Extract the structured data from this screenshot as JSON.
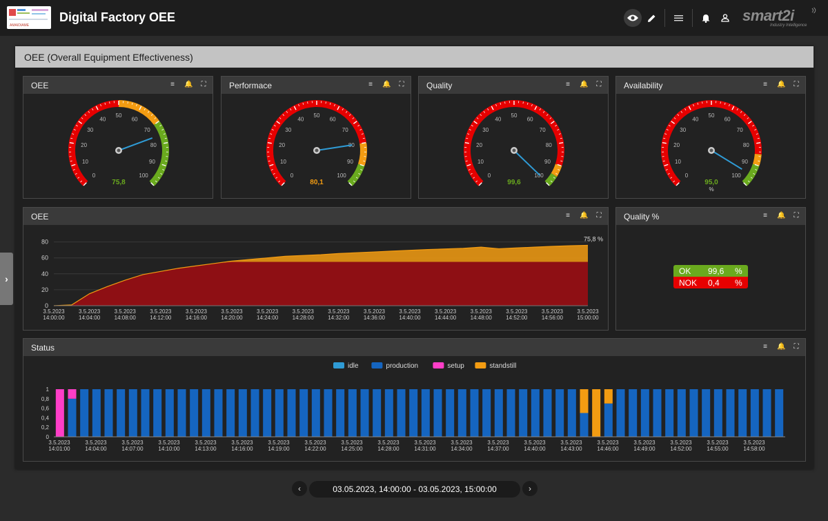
{
  "header": {
    "app_title": "Digital Factory OEE",
    "logo_text": "AMAIDIAME",
    "brand": "smart2i",
    "brand_tagline": "Industry Intelligence",
    "icons": [
      "eye-icon",
      "edit-icon",
      "menu-icon",
      "bell-icon",
      "user-icon"
    ]
  },
  "section": {
    "title": "OEE (Overall Equipment Effectiveness)"
  },
  "colors": {
    "red": "#e60000",
    "orange": "#f39c12",
    "green": "#6aaa1e",
    "blue_line": "#2f9bd5",
    "production": "#1565c0",
    "idle": "#2f9bd5",
    "setup": "#ff3ec8",
    "standstill": "#f39c12"
  },
  "gauges": [
    {
      "title": "OEE",
      "value": 75.8,
      "display": "75,8",
      "unit": "",
      "value_color": "#6aaa1e",
      "bands": [
        [
          0,
          50,
          "red"
        ],
        [
          50,
          70,
          "orange"
        ],
        [
          70,
          100,
          "green"
        ]
      ]
    },
    {
      "title": "Performace",
      "value": 80.1,
      "display": "80,1",
      "unit": "",
      "value_color": "#f39c12",
      "bands": [
        [
          0,
          80,
          "red"
        ],
        [
          80,
          90,
          "orange"
        ],
        [
          90,
          100,
          "green"
        ]
      ]
    },
    {
      "title": "Quality",
      "value": 99.6,
      "display": "99,6",
      "unit": "",
      "value_color": "#6aaa1e",
      "bands": [
        [
          0,
          90,
          "red"
        ],
        [
          90,
          95,
          "orange"
        ],
        [
          95,
          100,
          "green"
        ]
      ]
    },
    {
      "title": "Availability",
      "value": 95.0,
      "display": "95,0",
      "unit": "%",
      "value_color": "#6aaa1e",
      "bands": [
        [
          0,
          85,
          "red"
        ],
        [
          85,
          90,
          "orange"
        ],
        [
          90,
          100,
          "green"
        ]
      ]
    }
  ],
  "gauge_ticks": [
    "0",
    "10",
    "20",
    "30",
    "40",
    "50",
    "60",
    "70",
    "80",
    "90",
    "100"
  ],
  "oee_chart": {
    "title": "OEE",
    "end_label": "75,8 %",
    "chart_data": {
      "type": "area",
      "y_ticks": [
        0,
        20,
        40,
        60,
        80
      ],
      "ylim": [
        0,
        84
      ],
      "x_labels": [
        [
          "3.5.2023",
          "14:00:00"
        ],
        [
          "3.5.2023",
          "14:04:00"
        ],
        [
          "3.5.2023",
          "14:08:00"
        ],
        [
          "3.5.2023",
          "14:12:00"
        ],
        [
          "3.5.2023",
          "14:16:00"
        ],
        [
          "3.5.2023",
          "14:20:00"
        ],
        [
          "3.5.2023",
          "14:24:00"
        ],
        [
          "3.5.2023",
          "14:28:00"
        ],
        [
          "3.5.2023",
          "14:32:00"
        ],
        [
          "3.5.2023",
          "14:36:00"
        ],
        [
          "3.5.2023",
          "14:40:00"
        ],
        [
          "3.5.2023",
          "14:44:00"
        ],
        [
          "3.5.2023",
          "14:48:00"
        ],
        [
          "3.5.2023",
          "14:52:00"
        ],
        [
          "3.5.2023",
          "14:56:00"
        ],
        [
          "3.5.2023",
          "15:00:00"
        ]
      ],
      "x_minutes": [
        0,
        2,
        4,
        6,
        8,
        10,
        12,
        14,
        16,
        18,
        20,
        22,
        24,
        26,
        28,
        30,
        32,
        34,
        36,
        38,
        40,
        42,
        44,
        46,
        48,
        50,
        52,
        54,
        56,
        58,
        60
      ],
      "series": [
        {
          "name": "",
          "color": "#f39c12",
          "values": [
            0,
            1,
            15,
            24,
            32,
            39,
            43,
            47,
            50,
            53,
            56,
            58,
            60,
            62,
            63,
            64,
            65.5,
            66.5,
            67.5,
            68.5,
            69.5,
            70.5,
            71.2,
            72,
            73.5,
            71.5,
            72.5,
            73.5,
            74.5,
            75.2,
            75.8
          ]
        },
        {
          "name": "",
          "color": "#8e0f14",
          "values": [
            0,
            1,
            15,
            24,
            32,
            39,
            43,
            47,
            50,
            53,
            55,
            55,
            55,
            55,
            55,
            55,
            55,
            55,
            55,
            55,
            55,
            55,
            55,
            55,
            55,
            55,
            55,
            55,
            55,
            55,
            55
          ]
        }
      ]
    }
  },
  "quality": {
    "title": "Quality %",
    "rows": [
      {
        "label": "OK",
        "value": "99,6",
        "unit": "%",
        "color": "#6aaa1e"
      },
      {
        "label": "NOK",
        "value": "0,4",
        "unit": "%",
        "color": "#e60000"
      }
    ]
  },
  "status_chart": {
    "title": "Status",
    "legend": [
      {
        "name": "idle",
        "color": "#2f9bd5"
      },
      {
        "name": "production",
        "color": "#1565c0"
      },
      {
        "name": "setup",
        "color": "#ff3ec8"
      },
      {
        "name": "standstill",
        "color": "#f39c12"
      }
    ],
    "chart_data": {
      "type": "bar",
      "stacked": true,
      "y_ticks": [
        "0",
        "0,2",
        "0,4",
        "0,6",
        "0,8",
        "1"
      ],
      "ylim": [
        0,
        1
      ],
      "x_labels": [
        [
          "3.5.2023",
          "14:01:00"
        ],
        [
          "3.5.2023",
          "14:04:00"
        ],
        [
          "3.5.2023",
          "14:07:00"
        ],
        [
          "3.5.2023",
          "14:10:00"
        ],
        [
          "3.5.2023",
          "14:13:00"
        ],
        [
          "3.5.2023",
          "14:16:00"
        ],
        [
          "3.5.2023",
          "14:19:00"
        ],
        [
          "3.5.2023",
          "14:22:00"
        ],
        [
          "3.5.2023",
          "14:25:00"
        ],
        [
          "3.5.2023",
          "14:28:00"
        ],
        [
          "3.5.2023",
          "14:31:00"
        ],
        [
          "3.5.2023",
          "14:34:00"
        ],
        [
          "3.5.2023",
          "14:37:00"
        ],
        [
          "3.5.2023",
          "14:40:00"
        ],
        [
          "3.5.2023",
          "14:43:00"
        ],
        [
          "3.5.2023",
          "14:46:00"
        ],
        [
          "3.5.2023",
          "14:49:00"
        ],
        [
          "3.5.2023",
          "14:52:00"
        ],
        [
          "3.5.2023",
          "14:55:00"
        ],
        [
          "3.5.2023",
          "14:58:00"
        ]
      ],
      "bar_count": 60,
      "special_bars": [
        {
          "index": 0,
          "setup": 1,
          "production": 0,
          "standstill": 0
        },
        {
          "index": 1,
          "setup": 0.2,
          "production": 0.8,
          "standstill": 0
        },
        {
          "index": 43,
          "setup": 0,
          "production": 0.5,
          "standstill": 0.5
        },
        {
          "index": 44,
          "setup": 0,
          "production": 0,
          "standstill": 1
        },
        {
          "index": 45,
          "setup": 0,
          "production": 0.7,
          "standstill": 0.3
        }
      ]
    }
  },
  "date_range": {
    "text": "03.05.2023, 14:00:00 - 03.05.2023, 15:00:00",
    "prev": "‹",
    "next": "›"
  },
  "panel_icons": [
    "legend-icon",
    "alarm-icon",
    "fullscreen-icon"
  ]
}
